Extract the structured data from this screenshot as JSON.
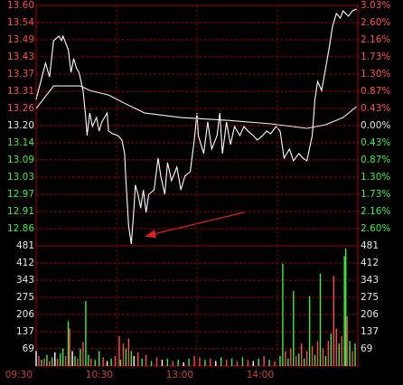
{
  "chart_data": [
    {
      "type": "line",
      "xlim": [
        0,
        240
      ],
      "ylim": [
        12.8,
        13.6
      ],
      "yticks": [
        {
          "value": 13.6,
          "label": "13.60"
        },
        {
          "value": 13.543,
          "label": "13.54"
        },
        {
          "value": 13.486,
          "label": "13.49"
        },
        {
          "value": 13.429,
          "label": "13.43"
        },
        {
          "value": 13.371,
          "label": "13.37"
        },
        {
          "value": 13.314,
          "label": "13.31"
        },
        {
          "value": 13.257,
          "label": "13.26"
        },
        {
          "value": 13.2,
          "label": "13.20"
        },
        {
          "value": 13.143,
          "label": "13.14"
        },
        {
          "value": 13.086,
          "label": "13.09"
        },
        {
          "value": 13.029,
          "label": "13.03"
        },
        {
          "value": 12.971,
          "label": "12.97"
        },
        {
          "value": 12.914,
          "label": "12.91"
        },
        {
          "value": 12.857,
          "label": "12.86"
        }
      ],
      "y2lim": [
        -3.03,
        3.03
      ],
      "y2ticks": [
        {
          "value": 3.03,
          "label": "3.03%"
        },
        {
          "value": 2.597,
          "label": "2.60%"
        },
        {
          "value": 2.164,
          "label": "2.16%"
        },
        {
          "value": 1.731,
          "label": "1.73%"
        },
        {
          "value": 1.299,
          "label": "1.30%"
        },
        {
          "value": 0.866,
          "label": "0.87%"
        },
        {
          "value": 0.433,
          "label": "0.43%"
        },
        {
          "value": 0,
          "label": "0.00%"
        },
        {
          "value": -0.433,
          "label": "0.43%"
        },
        {
          "value": -0.866,
          "label": "0.87%"
        },
        {
          "value": -1.299,
          "label": "1.30%"
        },
        {
          "value": -1.731,
          "label": "1.73%"
        },
        {
          "value": -2.164,
          "label": "2.16%"
        },
        {
          "value": -2.597,
          "label": "2.60%"
        }
      ],
      "up_color": "#ff4a4a",
      "down_color": "#3cf03c",
      "flat_color": "#e8e8e8",
      "grid": true,
      "grid_color": "#a00000",
      "series": [
        {
          "color": "#ffffff",
          "x": [
            0,
            7,
            10,
            13,
            17,
            19,
            20,
            24,
            26,
            28,
            30,
            32,
            35,
            37,
            38,
            40,
            42,
            45,
            47,
            49,
            53,
            54,
            57,
            61,
            64,
            66,
            67,
            69,
            71,
            73,
            74,
            76,
            78,
            80,
            82,
            84,
            88,
            91,
            93,
            96,
            98,
            101,
            105,
            108,
            111,
            115,
            118,
            120,
            121,
            125,
            128,
            131,
            135,
            137,
            139,
            142,
            145,
            148,
            152,
            155,
            158,
            162,
            165,
            169,
            172,
            175,
            179,
            182,
            185,
            189,
            192,
            196,
            199,
            202,
            206,
            208,
            210,
            213,
            216,
            219,
            221,
            224,
            227,
            229,
            233,
            236,
            239
          ],
          "values": [
            13.287,
            13.408,
            13.362,
            13.483,
            13.498,
            13.483,
            13.498,
            13.453,
            13.377,
            13.423,
            13.392,
            13.377,
            13.317,
            13.227,
            13.167,
            13.242,
            13.197,
            13.227,
            13.182,
            13.212,
            13.242,
            13.182,
            13.173,
            13.167,
            13.152,
            13.107,
            13.017,
            12.866,
            12.806,
            12.926,
            13.002,
            12.971,
            12.926,
            12.986,
            12.911,
            12.971,
            12.986,
            13.092,
            13.032,
            12.971,
            13.077,
            13.017,
            13.062,
            12.986,
            13.032,
            13.047,
            13.152,
            13.242,
            13.167,
            13.107,
            13.212,
            13.122,
            13.167,
            13.242,
            13.107,
            13.212,
            13.137,
            13.197,
            13.167,
            13.197,
            13.182,
            13.167,
            13.152,
            13.167,
            13.182,
            13.173,
            13.197,
            13.182,
            13.092,
            13.122,
            13.083,
            13.107,
            13.092,
            13.083,
            13.167,
            13.287,
            13.347,
            13.317,
            13.392,
            13.468,
            13.528,
            13.573,
            13.558,
            13.582,
            13.564,
            13.582,
            13.588
          ]
        },
        {
          "color": "#f0f0f0",
          "x": [
            0,
            13,
            33,
            40,
            54,
            67,
            81,
            108,
            142,
            175,
            202,
            216,
            229,
            239
          ],
          "values": [
            13.257,
            13.332,
            13.332,
            13.317,
            13.302,
            13.272,
            13.242,
            13.227,
            13.218,
            13.206,
            13.191,
            13.203,
            13.227,
            13.263
          ]
        }
      ]
    },
    {
      "type": "bar",
      "xlim": [
        0,
        240
      ],
      "ylim": [
        0,
        481
      ],
      "yticks": [
        69,
        137,
        206,
        275,
        343,
        412,
        481
      ],
      "xticks": [
        {
          "value": 0,
          "label": "09:30"
        },
        {
          "value": 60,
          "label": "10:30"
        },
        {
          "value": 120,
          "label": "13:00"
        },
        {
          "value": 180,
          "label": "14:00"
        }
      ],
      "label_color": "#e8e8e8",
      "axis_label_color": "#c84040",
      "grid": true,
      "grid_color": "#a00000",
      "x": [
        0,
        2,
        4,
        6,
        8,
        10,
        12,
        14,
        16,
        18,
        20,
        22,
        24,
        25,
        27,
        29,
        31,
        33,
        35,
        37,
        39,
        41,
        44,
        47,
        50,
        53,
        56,
        59,
        62,
        63,
        65,
        67,
        69,
        71,
        73,
        76,
        79,
        82,
        86,
        90,
        94,
        98,
        102,
        106,
        110,
        114,
        118,
        122,
        126,
        130,
        134,
        138,
        142,
        146,
        150,
        154,
        158,
        162,
        166,
        170,
        174,
        178,
        182,
        184,
        186,
        188,
        190,
        192,
        194,
        196,
        198,
        200,
        202,
        204,
        206,
        208,
        210,
        212,
        214,
        216,
        218,
        220,
        222,
        224,
        226,
        228,
        230,
        231,
        232,
        234,
        236,
        238
      ],
      "values": [
        60,
        40,
        25,
        30,
        45,
        20,
        35,
        55,
        30,
        50,
        70,
        40,
        180,
        150,
        60,
        40,
        30,
        70,
        95,
        260,
        45,
        30,
        25,
        60,
        35,
        20,
        30,
        40,
        120,
        25,
        90,
        70,
        110,
        60,
        40,
        55,
        30,
        45,
        20,
        35,
        25,
        30,
        20,
        25,
        15,
        30,
        40,
        35,
        25,
        30,
        20,
        35,
        25,
        30,
        20,
        35,
        25,
        20,
        30,
        40,
        25,
        20,
        40,
        410,
        60,
        30,
        70,
        300,
        40,
        50,
        90,
        30,
        60,
        280,
        80,
        45,
        100,
        370,
        70,
        40,
        100,
        130,
        360,
        150,
        90,
        120,
        440,
        470,
        200,
        100,
        60,
        90
      ],
      "colors": [
        "#ffffff",
        "#ff4a4a",
        "#3cf03c",
        "#ff4a4a",
        "#3cf03c",
        "#ff4a4a",
        "#3cf03c",
        "#ffffff",
        "#ff4a4a",
        "#3cf03c",
        "#3cf03c",
        "#ff4a4a",
        "#3cf03c",
        "#ff4a4a",
        "#ffffff",
        "#3cf03c",
        "#ff4a4a",
        "#3cf03c",
        "#ff4a4a",
        "#3cf03c",
        "#3cf03c",
        "#ff4a4a",
        "#3cf03c",
        "#3cf03c",
        "#ff4a4a",
        "#ffffff",
        "#3cf03c",
        "#ff4a4a",
        "#ff4a4a",
        "#3cf03c",
        "#ff4a4a",
        "#3cf03c",
        "#ff4a4a",
        "#3cf03c",
        "#ffffff",
        "#ff4a4a",
        "#3cf03c",
        "#ff4a4a",
        "#3cf03c",
        "#ff4a4a",
        "#ffffff",
        "#3cf03c",
        "#ff4a4a",
        "#3cf03c",
        "#ffffff",
        "#3cf03c",
        "#ff4a4a",
        "#ff4a4a",
        "#3cf03c",
        "#ff4a4a",
        "#ffffff",
        "#3cf03c",
        "#ff4a4a",
        "#3cf03c",
        "#ff4a4a",
        "#3cf03c",
        "#ff4a4a",
        "#ffffff",
        "#3cf03c",
        "#ff4a4a",
        "#3cf03c",
        "#ff4a4a",
        "#3cf03c",
        "#3cf03c",
        "#ff4a4a",
        "#3cf03c",
        "#ff4a4a",
        "#3cf03c",
        "#ff4a4a",
        "#3cf03c",
        "#ff4a4a",
        "#3cf03c",
        "#ff4a4a",
        "#3cf03c",
        "#ff4a4a",
        "#3cf03c",
        "#ff4a4a",
        "#3cf03c",
        "#ff4a4a",
        "#3cf03c",
        "#ff4a4a",
        "#3cf03c",
        "#ff4a4a",
        "#ff4a4a",
        "#3cf03c",
        "#ff4a4a",
        "#3cf03c",
        "#3cf03c",
        "#ff4a4a",
        "#3cf03c",
        "#ff4a4a",
        "#3cf03c"
      ]
    }
  ]
}
